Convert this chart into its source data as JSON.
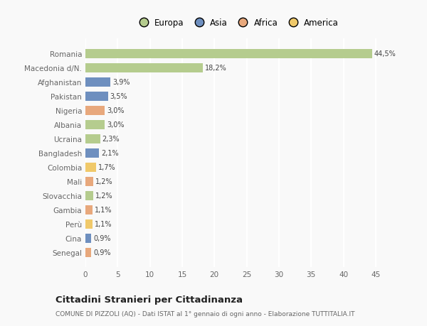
{
  "categories": [
    "Romania",
    "Macedonia d/N.",
    "Afghanistan",
    "Pakistan",
    "Nigeria",
    "Albania",
    "Ucraina",
    "Bangladesh",
    "Colombia",
    "Mali",
    "Slovacchia",
    "Gambia",
    "Perù",
    "Cina",
    "Senegal"
  ],
  "values": [
    44.5,
    18.2,
    3.9,
    3.5,
    3.0,
    3.0,
    2.3,
    2.1,
    1.7,
    1.2,
    1.2,
    1.1,
    1.1,
    0.9,
    0.9
  ],
  "labels": [
    "44,5%",
    "18,2%",
    "3,9%",
    "3,5%",
    "3,0%",
    "3,0%",
    "2,3%",
    "2,1%",
    "1,7%",
    "1,2%",
    "1,2%",
    "1,1%",
    "1,1%",
    "0,9%",
    "0,9%"
  ],
  "continents": [
    "Europa",
    "Europa",
    "Asia",
    "Asia",
    "Africa",
    "Europa",
    "Europa",
    "Asia",
    "America",
    "Africa",
    "Europa",
    "Africa",
    "America",
    "Asia",
    "Africa"
  ],
  "continent_colors": {
    "Europa": "#b5cc8e",
    "Asia": "#6e8fbf",
    "Africa": "#e8a87c",
    "America": "#f0c96a"
  },
  "legend_order": [
    "Europa",
    "Asia",
    "Africa",
    "America"
  ],
  "legend_colors": [
    "#b5cc8e",
    "#6e8fbf",
    "#e8a87c",
    "#f0c96a"
  ],
  "title": "Cittadini Stranieri per Cittadinanza",
  "subtitle": "COMUNE DI PIZZOLI (AQ) - Dati ISTAT al 1° gennaio di ogni anno - Elaborazione TUTTITALIA.IT",
  "xlim": [
    0,
    47
  ],
  "xticks": [
    0,
    5,
    10,
    15,
    20,
    25,
    30,
    35,
    40,
    45
  ],
  "background_color": "#f9f9f9",
  "bar_height": 0.65,
  "grid_color": "#ffffff",
  "label_color": "#666666",
  "text_color": "#444444"
}
